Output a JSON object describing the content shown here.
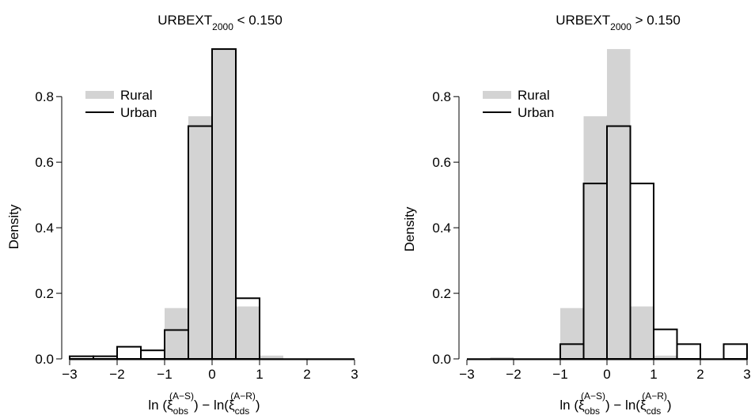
{
  "chart_data": [
    {
      "type": "histogram",
      "title": {
        "main": "URBEXT",
        "sub": "2000",
        "tail": " < 0.150"
      },
      "ylabel": "Density",
      "xlabel": {
        "a": "ln (ξ",
        "sub1": "obs",
        "sup1": "(A−S)",
        "b": ") − ln(ξ",
        "sub2": "cds",
        "sup2": "(A−R)",
        "c": ")"
      },
      "xlim": [
        -3,
        3
      ],
      "ylim": [
        0,
        0.95
      ],
      "xticks": [
        -3,
        -2,
        -1,
        0,
        1,
        2,
        3
      ],
      "xtick_labels": [
        "−3",
        "−2",
        "−1",
        "0",
        "1",
        "2",
        "3"
      ],
      "yticks": [
        0.0,
        0.2,
        0.4,
        0.6,
        0.8
      ],
      "ytick_labels": [
        "0.0",
        "0.2",
        "0.4",
        "0.6",
        "0.8"
      ],
      "bin_edges": [
        -3,
        -2.5,
        -2,
        -1.5,
        -1,
        -0.5,
        0,
        0.5,
        1,
        1.5,
        2,
        2.5,
        3
      ],
      "legend": {
        "position": "top-left",
        "entries": [
          "Rural",
          "Urban"
        ]
      },
      "series": [
        {
          "name": "Rural",
          "style": "filled",
          "color": "#d3d3d3",
          "values": [
            0,
            0,
            0,
            0,
            0.155,
            0.74,
            0.945,
            0.16,
            0.01,
            0,
            0,
            0
          ]
        },
        {
          "name": "Urban",
          "style": "outline",
          "color": "#000000",
          "values": [
            0.008,
            0.008,
            0.037,
            0.026,
            0.088,
            0.71,
            0.945,
            0.185,
            0,
            0,
            0,
            0
          ]
        }
      ]
    },
    {
      "type": "histogram",
      "title": {
        "main": "URBEXT",
        "sub": "2000",
        "tail": " > 0.150"
      },
      "ylabel": "Density",
      "xlabel": {
        "a": "ln (ξ",
        "sub1": "obs",
        "sup1": "(A−S)",
        "b": ") − ln(ξ",
        "sub2": "cds",
        "sup2": "(A−R)",
        "c": ")"
      },
      "xlim": [
        -3,
        3
      ],
      "ylim": [
        0,
        0.95
      ],
      "xticks": [
        -3,
        -2,
        -1,
        0,
        1,
        2,
        3
      ],
      "xtick_labels": [
        "−3",
        "−2",
        "−1",
        "0",
        "1",
        "2",
        "3"
      ],
      "yticks": [
        0.0,
        0.2,
        0.4,
        0.6,
        0.8
      ],
      "ytick_labels": [
        "0.0",
        "0.2",
        "0.4",
        "0.6",
        "0.8"
      ],
      "bin_edges": [
        -3,
        -2.5,
        -2,
        -1.5,
        -1,
        -0.5,
        0,
        0.5,
        1,
        1.5,
        2,
        2.5,
        3
      ],
      "legend": {
        "position": "top-left",
        "entries": [
          "Rural",
          "Urban"
        ]
      },
      "series": [
        {
          "name": "Rural",
          "style": "filled",
          "color": "#d3d3d3",
          "values": [
            0,
            0.005,
            0,
            0,
            0.155,
            0.74,
            0.945,
            0.16,
            0.01,
            0,
            0,
            0
          ]
        },
        {
          "name": "Urban",
          "style": "outline",
          "color": "#000000",
          "values": [
            0,
            0,
            0,
            0,
            0.045,
            0.535,
            0.71,
            0.535,
            0.09,
            0.045,
            0,
            0.045
          ]
        }
      ]
    }
  ]
}
